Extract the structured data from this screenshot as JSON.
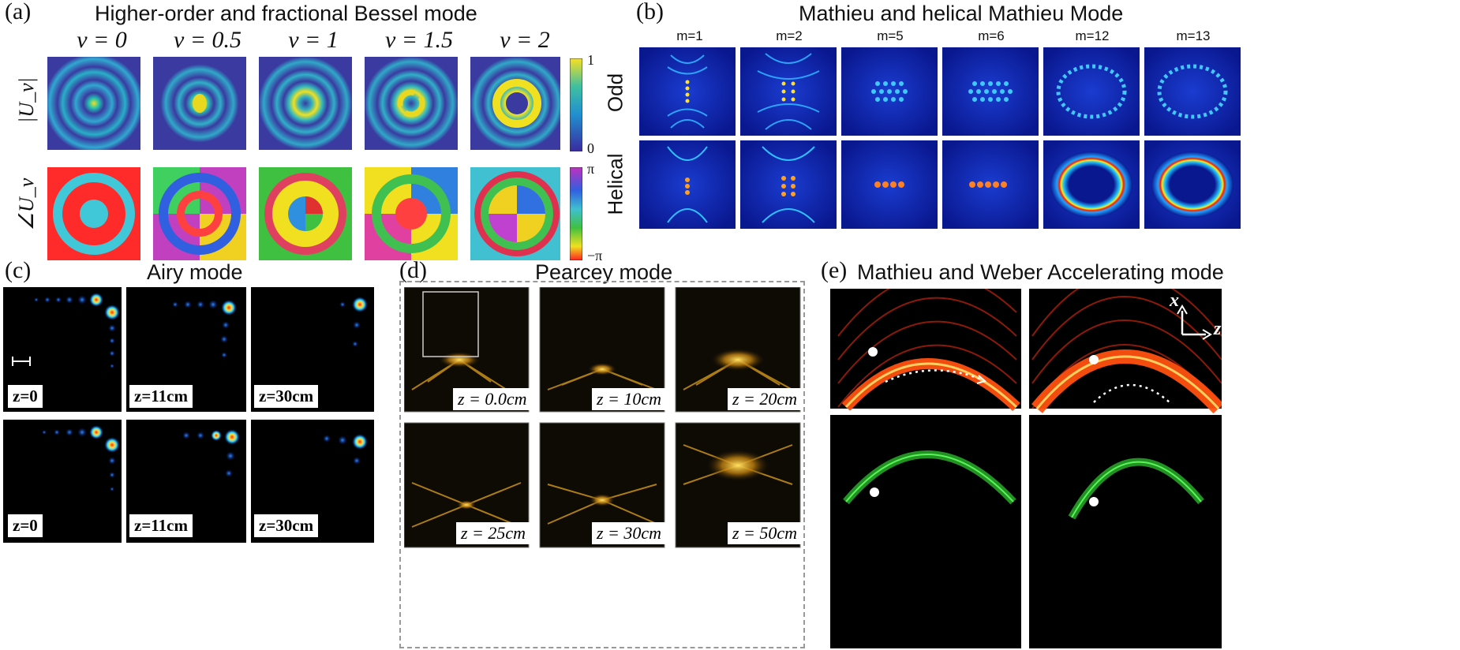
{
  "panel_a": {
    "label": "(a)",
    "title": "Higher-order and fractional Bessel mode",
    "nu_labels": [
      "ν = 0",
      "ν = 0.5",
      "ν = 1",
      "ν = 1.5",
      "ν = 2"
    ],
    "row_labels": [
      "|U_ν|",
      "∠U_ν"
    ],
    "colorbar_amp": {
      "top": "1",
      "bottom": "0"
    },
    "colorbar_phase": {
      "top": "π",
      "bottom": "−π"
    }
  },
  "panel_b": {
    "label": "(b)",
    "title": "Mathieu and helical Mathieu Mode",
    "m_labels": [
      "m=1",
      "m=2",
      "m=5",
      "m=6",
      "m=12",
      "m=13"
    ],
    "row_labels": [
      "Odd",
      "Helical"
    ]
  },
  "panel_c": {
    "label": "(c)",
    "title": "Airy mode",
    "z_labels_top": [
      "z=0",
      "z=11cm",
      "z=30cm"
    ],
    "z_labels_bottom": [
      "z=0",
      "z=11cm",
      "z=30cm"
    ]
  },
  "panel_d": {
    "label": "(d)",
    "title": "Pearcey mode",
    "z_labels": [
      "z = 0.0cm",
      "z = 10cm",
      "z = 20cm",
      "z = 25cm",
      "z = 30cm",
      "z = 50cm"
    ]
  },
  "panel_e": {
    "label": "(e)",
    "title": "Mathieu and Weber Accelerating mode",
    "axis_x": "x",
    "axis_z": "z"
  },
  "colors": {
    "airy_background": "#000000",
    "pearcey_glow": "#e8b020",
    "accel_red": "#ff3010",
    "accel_green": "#30d030",
    "mathieu_blue": "#0a1aa0"
  }
}
